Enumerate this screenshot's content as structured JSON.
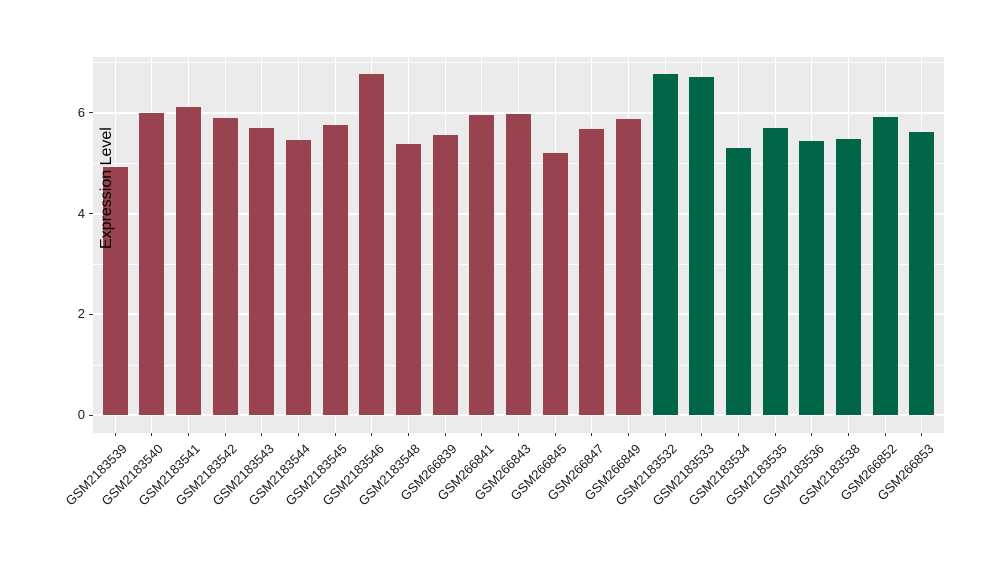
{
  "figure": {
    "background": "#ffffff",
    "panel_background": "#EBEBEB",
    "grid_major_color": "#ffffff",
    "grid_minor_color": "rgba(255,255,255,0.85)",
    "tick_color": "#333333",
    "axis_text_color": "#1a1a1a"
  },
  "chart_data": {
    "type": "bar",
    "title": "",
    "xlabel": "",
    "ylabel": "Expression Level",
    "ylim": [
      0,
      7.1
    ],
    "yticks": [
      0,
      2,
      4,
      6
    ],
    "yticks_minor": [
      1,
      3,
      5,
      7
    ],
    "grid": true,
    "legend": false,
    "categories": [
      "GSM2183539",
      "GSM2183540",
      "GSM2183541",
      "GSM2183542",
      "GSM2183543",
      "GSM2183544",
      "GSM2183545",
      "GSM2183546",
      "GSM2183548",
      "GSM266839",
      "GSM266841",
      "GSM266843",
      "GSM266845",
      "GSM266847",
      "GSM266849",
      "GSM2183532",
      "GSM2183533",
      "GSM2183534",
      "GSM2183535",
      "GSM2183536",
      "GSM2183538",
      "GSM266852",
      "GSM266853"
    ],
    "values": [
      4.92,
      6.0,
      6.11,
      5.9,
      5.7,
      5.46,
      5.76,
      6.77,
      5.37,
      5.56,
      5.96,
      5.97,
      5.21,
      5.67,
      5.87,
      6.76,
      6.71,
      5.31,
      5.69,
      5.44,
      5.48,
      5.92,
      5.62
    ],
    "groups": [
      "maroon",
      "maroon",
      "maroon",
      "maroon",
      "maroon",
      "maroon",
      "maroon",
      "maroon",
      "maroon",
      "maroon",
      "maroon",
      "maroon",
      "maroon",
      "maroon",
      "maroon",
      "green",
      "green",
      "green",
      "green",
      "green",
      "green",
      "green",
      "green"
    ],
    "group_colors": {
      "maroon": "#9A4350",
      "green": "#016647"
    }
  }
}
